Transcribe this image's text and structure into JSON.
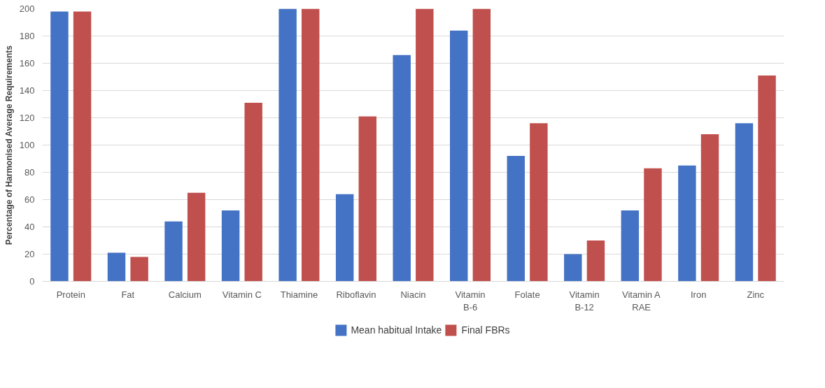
{
  "chart_data": {
    "type": "bar",
    "ylabel": "Percentage of Harmonised Average Requirements",
    "categories": [
      "Protein",
      "Fat",
      "Calcium",
      "Vitamin C",
      "Thiamine",
      "Riboflavin",
      "Niacin",
      "Vitamin\nB-6",
      "Folate",
      "Vitamin\nB-12",
      "Vitamin A\nRAE",
      "Iron",
      "Zinc"
    ],
    "series": [
      {
        "name": "Mean habitual Intake",
        "color": "#4472c4",
        "values": [
          198,
          21,
          44,
          52,
          200,
          64,
          166,
          184,
          92,
          20,
          52,
          85,
          116
        ]
      },
      {
        "name": "Final FBRs",
        "color": "#c0504d",
        "values": [
          198,
          18,
          65,
          131,
          200,
          121,
          200,
          200,
          116,
          30,
          83,
          108,
          151
        ]
      }
    ],
    "ylim": [
      0,
      200
    ],
    "yticks": [
      0,
      20,
      40,
      60,
      80,
      100,
      120,
      140,
      160,
      180,
      200
    ],
    "grid": "y",
    "legend": "bottom"
  }
}
